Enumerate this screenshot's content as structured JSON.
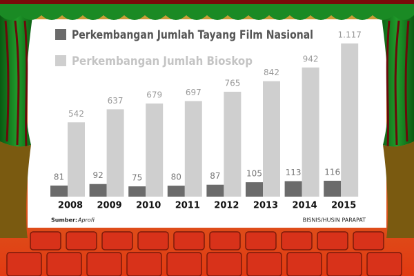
{
  "chart_data": {
    "type": "bar",
    "categories": [
      "2008",
      "2009",
      "2010",
      "2011",
      "2012",
      "2013",
      "2014",
      "2015"
    ],
    "series": [
      {
        "name": "Perkembangan Jumlah Tayang Film Nasional",
        "color": "#6b6b6b",
        "values": [
          81,
          92,
          75,
          80,
          87,
          105,
          113,
          116
        ]
      },
      {
        "name": "Perkembangan Jumlah Bioskop",
        "color": "#cfcfcf",
        "values": [
          542,
          637,
          679,
          697,
          765,
          842,
          942,
          1117
        ],
        "value_labels": [
          "542",
          "637",
          "679",
          "697",
          "765",
          "842",
          "942",
          "1.117"
        ]
      }
    ],
    "source_label": "Sumber:",
    "source": "Aprofi",
    "credit": "BISNIS/HUSIN PARAPAT"
  }
}
